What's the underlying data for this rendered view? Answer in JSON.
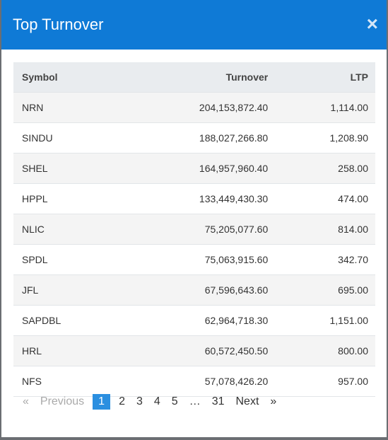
{
  "header": {
    "title": "Top Turnover",
    "close": "×"
  },
  "table": {
    "columns": [
      "Symbol",
      "Turnover",
      "LTP"
    ],
    "rows": [
      [
        "NRN",
        "204,153,872.40",
        "1,114.00"
      ],
      [
        "SINDU",
        "188,027,266.80",
        "1,208.90"
      ],
      [
        "SHEL",
        "164,957,960.40",
        "258.00"
      ],
      [
        "HPPL",
        "133,449,430.30",
        "474.00"
      ],
      [
        "NLIC",
        "75,205,077.60",
        "814.00"
      ],
      [
        "SPDL",
        "75,063,915.60",
        "342.70"
      ],
      [
        "JFL",
        "67,596,643.60",
        "695.00"
      ],
      [
        "SAPDBL",
        "62,964,718.30",
        "1,151.00"
      ],
      [
        "HRL",
        "60,572,450.50",
        "800.00"
      ],
      [
        "NFS",
        "57,078,426.20",
        "957.00"
      ]
    ]
  },
  "pagination": {
    "first_symbol": "«",
    "previous": "Previous",
    "pages": [
      "1",
      "2",
      "3",
      "4",
      "5",
      "…",
      "31"
    ],
    "active": 0,
    "next": "Next",
    "last_symbol": "»"
  }
}
